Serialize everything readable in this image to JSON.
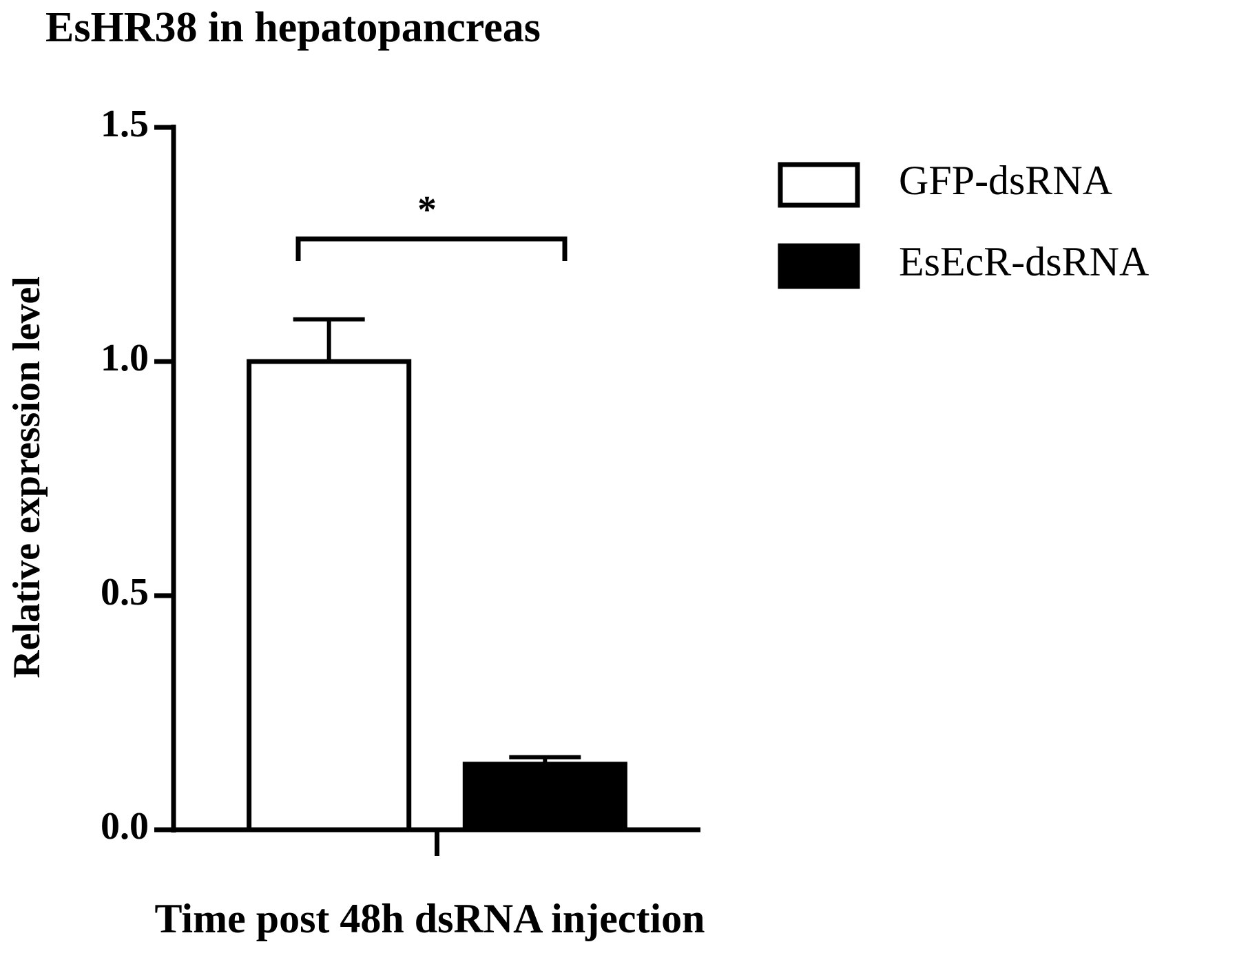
{
  "chart_data": {
    "type": "bar",
    "title": "EsHR38 in hepatopancreas",
    "x_label": "Time post 48h dsRNA injection",
    "y_label": "Relative expression level",
    "categories": [
      null
    ],
    "series": [
      {
        "name": "GFP-dsRNA",
        "color": "#ffffff",
        "values": [
          1.0
        ],
        "errors": [
          0.09
        ]
      },
      {
        "name": "EsEcR-dsRNA",
        "color": "#000000",
        "values": [
          0.14
        ],
        "errors": [
          0.015
        ]
      }
    ],
    "ylim": [
      0,
      1.5
    ],
    "yticks": [
      {
        "value": 0,
        "label": "0.0"
      },
      0.5,
      {
        "value": 1,
        "label": "1.0"
      },
      1.5
    ],
    "annotation": "*",
    "legend": "right"
  }
}
